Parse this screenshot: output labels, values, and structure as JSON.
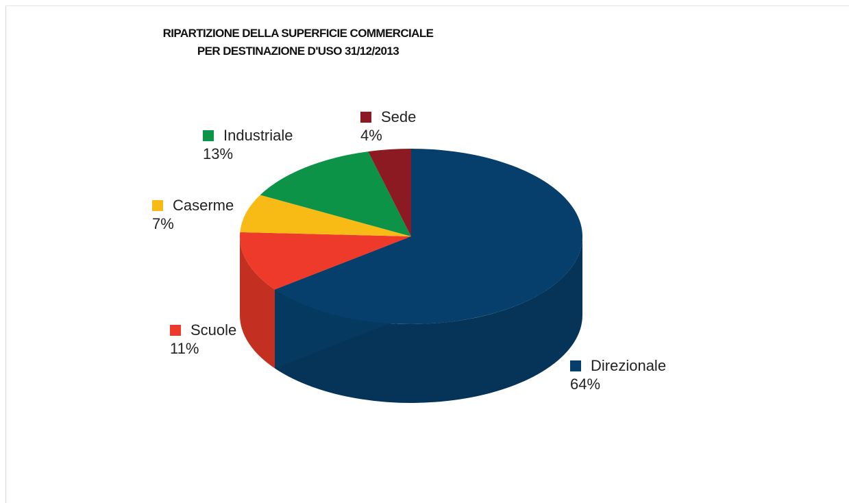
{
  "chart_data": {
    "type": "pie",
    "title_lines": [
      "RIPARTIZIONE DELLA SUPERFICIE COMMERCIALE",
      "PER DESTINAZIONE D'USO 31/12/2013"
    ],
    "slices": [
      {
        "name": "Direzionale",
        "value": 64,
        "label": "64%",
        "color": "#063f6b"
      },
      {
        "name": "Scuole",
        "value": 11,
        "label": "11%",
        "color": "#ee3a2a"
      },
      {
        "name": "Caserme",
        "value": 7,
        "label": "7%",
        "color": "#f8bb16"
      },
      {
        "name": "Industriale",
        "value": 13,
        "label": "13%",
        "color": "#0d9347"
      },
      {
        "name": "Sede",
        "value": 4,
        "label": "4%",
        "color": "#8c1a22"
      }
    ]
  }
}
